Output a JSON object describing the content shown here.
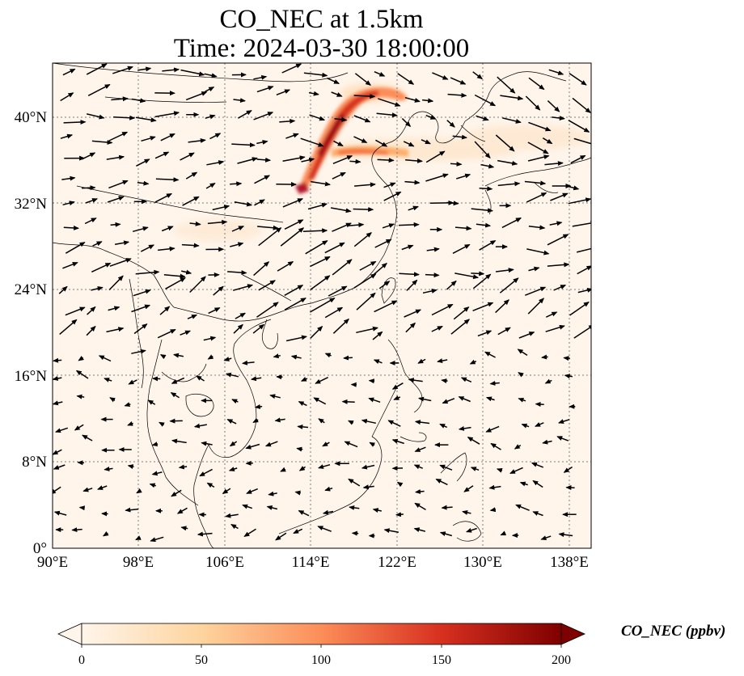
{
  "title": {
    "line1": "CO_NEC at 1.5km",
    "line2": "Time: 2024-03-30 18:00:00"
  },
  "map": {
    "extent_lon": [
      90,
      140.5
    ],
    "extent_lat": [
      0,
      45
    ],
    "lat_ticks": [
      {
        "value": 0,
        "label": "0°"
      },
      {
        "value": 8,
        "label": "8°N"
      },
      {
        "value": 16,
        "label": "16°N"
      },
      {
        "value": 24,
        "label": "24°N"
      },
      {
        "value": 32,
        "label": "32°N"
      },
      {
        "value": 40,
        "label": "40°N"
      }
    ],
    "lon_ticks": [
      {
        "value": 90,
        "label": "90°E"
      },
      {
        "value": 98,
        "label": "98°E"
      },
      {
        "value": 106,
        "label": "106°E"
      },
      {
        "value": 114,
        "label": "114°E"
      },
      {
        "value": 122,
        "label": "122°E"
      },
      {
        "value": 130,
        "label": "130°E"
      },
      {
        "value": 138,
        "label": "138°E"
      }
    ],
    "gridlines": "dotted",
    "background_color": "#fff5eb"
  },
  "colorbar": {
    "label": "CO_NEC (ppbv)",
    "min": 0,
    "max": 200,
    "ticks": [
      0,
      50,
      100,
      150,
      200
    ],
    "extend": "both",
    "colormap": "OrRd",
    "colors": [
      "#fff5eb",
      "#fdd49e",
      "#fc8d59",
      "#d7301f",
      "#7f0000"
    ]
  }
}
